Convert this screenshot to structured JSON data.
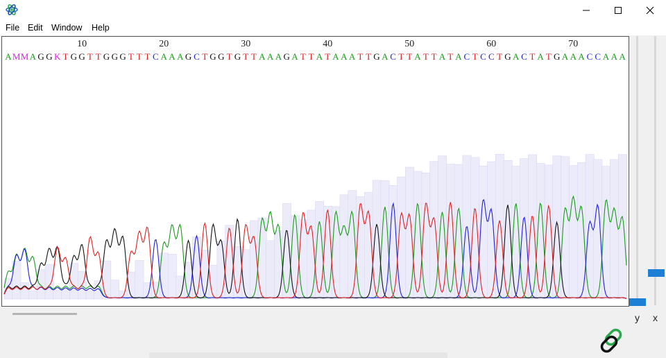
{
  "window": {
    "icon": "atom-icon",
    "controls": [
      "minimize-icon",
      "maximize-icon",
      "close-icon"
    ]
  },
  "menu": [
    "File",
    "Edit",
    "Window",
    "Help"
  ],
  "sequence": {
    "positions": [
      "10",
      "20",
      "30",
      "40",
      "50",
      "60",
      "70"
    ],
    "bases": "AMMAGGKTGGTTGGGTTTCAAAGCTGGTGTTAAAGATTATAAATTGACTTATTATACTCCTGACTATGAAACCAAA"
  },
  "base_colors": {
    "A": "#1a9a1a",
    "C": "#2020e0",
    "G": "#111111",
    "T": "#e02020",
    "M": "#e020e0",
    "K": "#e020e0"
  },
  "zoom_labels": {
    "y": "y",
    "x": "x"
  },
  "icons": {
    "link": "link-icon"
  }
}
